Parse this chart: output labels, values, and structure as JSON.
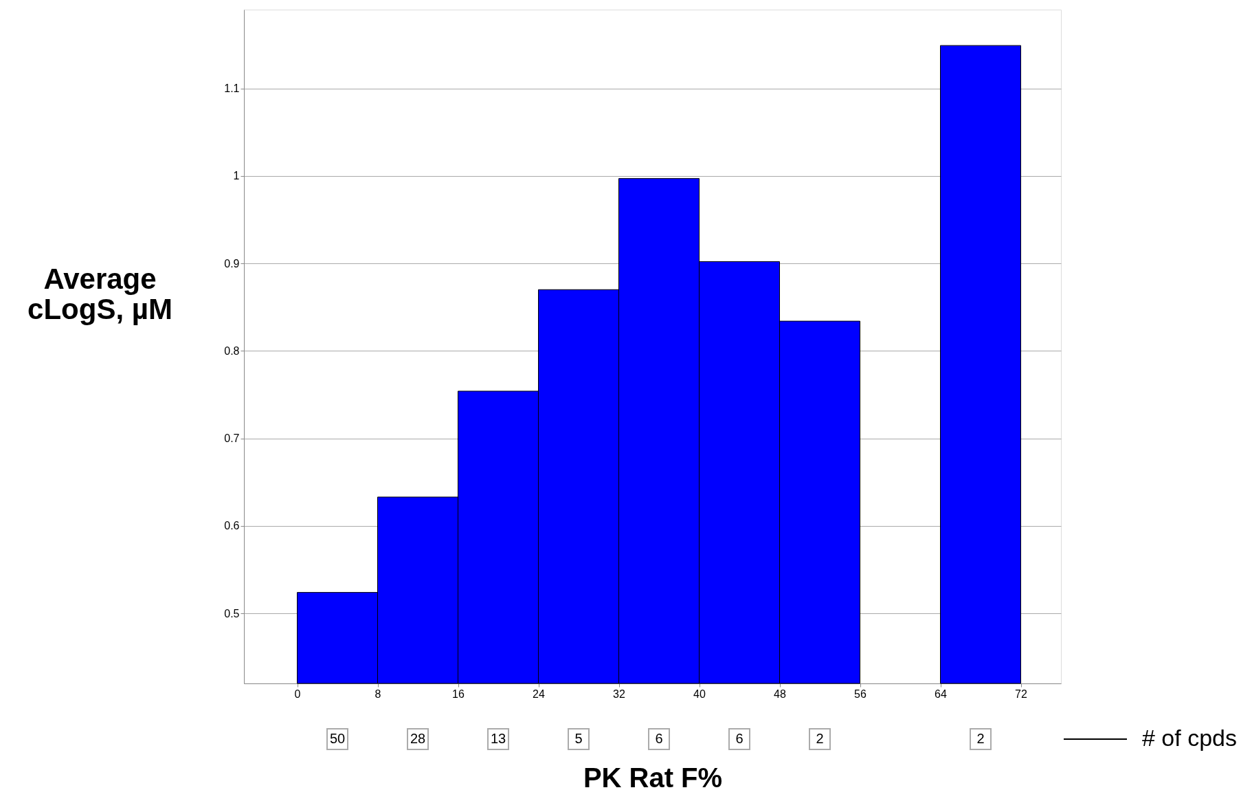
{
  "chart_data": {
    "type": "histogram",
    "bins": [
      0,
      8,
      16,
      24,
      32,
      40,
      48,
      56,
      64,
      72
    ],
    "values": [
      0.524,
      0.633,
      0.754,
      0.87,
      0.997,
      0.902,
      0.834,
      null,
      1.149
    ],
    "color": "#0000ff",
    "xlabel": "PK Rat F%",
    "ylabel": "Average cLogS, µM",
    "xlim": [
      -5.3,
      76
    ],
    "xticks": [
      0,
      8,
      16,
      24,
      32,
      40,
      48,
      56,
      64,
      72
    ],
    "ylim": [
      0.42,
      1.19
    ],
    "yticks": [
      0.5,
      0.6,
      0.7,
      0.8,
      0.9,
      {
        "value": 1,
        "label": "1"
      },
      1.1
    ],
    "grid": "y",
    "annotations": [
      "50",
      "28",
      "13",
      "5",
      "6",
      "6",
      "2",
      "2",
      "# of cpds"
    ]
  }
}
